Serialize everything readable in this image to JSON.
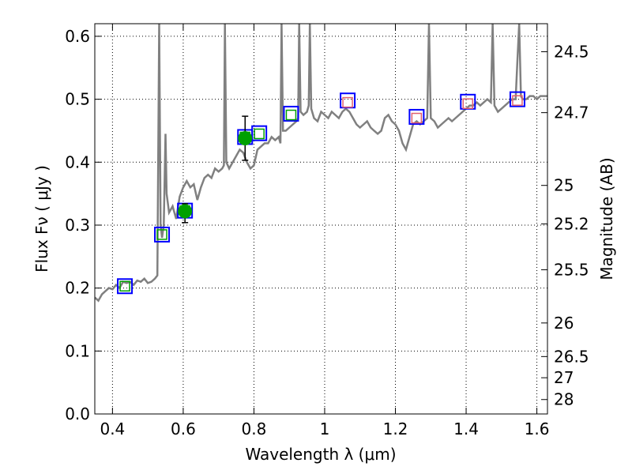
{
  "chart_data": {
    "type": "scatter",
    "xlabel": "Wavelength  λ (μm)",
    "ylabel": "Flux  Fν  ( μJy )",
    "right_ylabel": "Magnitude (AB)",
    "xlim": [
      0.35,
      1.63
    ],
    "ylim": [
      0.0,
      0.62
    ],
    "grid": true,
    "x_ticks": [
      0.4,
      0.6,
      0.8,
      1.0,
      1.2,
      1.4,
      1.6
    ],
    "x_tick_labels": [
      "0.4",
      "0.6",
      "0.8",
      "1",
      "1.2",
      "1.4",
      "1.6"
    ],
    "y_ticks": [
      0.0,
      0.1,
      0.2,
      0.3,
      0.4,
      0.5,
      0.6
    ],
    "y_tick_labels": [
      "0.0",
      "0.1",
      "0.2",
      "0.3",
      "0.4",
      "0.5",
      "0.6"
    ],
    "mag_ticks": [
      24.5,
      24.7,
      25,
      25.2,
      25.5,
      26,
      26.5,
      27,
      28
    ],
    "mag_tick_labels": [
      "24.5",
      "24.7",
      "25",
      "25.2",
      "25.5",
      "26",
      "26.5",
      "27",
      "28"
    ],
    "series": [
      {
        "kind": "line",
        "color": "#808080",
        "points": [
          [
            0.35,
            0.185
          ],
          [
            0.36,
            0.18
          ],
          [
            0.37,
            0.19
          ],
          [
            0.38,
            0.195
          ],
          [
            0.39,
            0.2
          ],
          [
            0.4,
            0.198
          ],
          [
            0.41,
            0.205
          ],
          [
            0.42,
            0.2
          ],
          [
            0.43,
            0.21
          ],
          [
            0.44,
            0.208
          ],
          [
            0.45,
            0.21
          ],
          [
            0.46,
            0.205
          ],
          [
            0.47,
            0.212
          ],
          [
            0.48,
            0.21
          ],
          [
            0.49,
            0.215
          ],
          [
            0.5,
            0.208
          ],
          [
            0.51,
            0.21
          ],
          [
            0.52,
            0.215
          ],
          [
            0.527,
            0.22
          ],
          [
            0.532,
            0.62
          ],
          [
            0.536,
            0.3
          ],
          [
            0.54,
            0.28
          ],
          [
            0.545,
            0.3
          ],
          [
            0.55,
            0.445
          ],
          [
            0.553,
            0.35
          ],
          [
            0.56,
            0.32
          ],
          [
            0.57,
            0.33
          ],
          [
            0.58,
            0.31
          ],
          [
            0.59,
            0.345
          ],
          [
            0.6,
            0.36
          ],
          [
            0.61,
            0.37
          ],
          [
            0.62,
            0.36
          ],
          [
            0.63,
            0.365
          ],
          [
            0.64,
            0.34
          ],
          [
            0.65,
            0.36
          ],
          [
            0.66,
            0.375
          ],
          [
            0.67,
            0.38
          ],
          [
            0.68,
            0.375
          ],
          [
            0.69,
            0.39
          ],
          [
            0.7,
            0.385
          ],
          [
            0.71,
            0.39
          ],
          [
            0.715,
            0.395
          ],
          [
            0.718,
            0.62
          ],
          [
            0.722,
            0.4
          ],
          [
            0.73,
            0.39
          ],
          [
            0.74,
            0.4
          ],
          [
            0.75,
            0.41
          ],
          [
            0.76,
            0.42
          ],
          [
            0.77,
            0.415
          ],
          [
            0.78,
            0.4
          ],
          [
            0.79,
            0.39
          ],
          [
            0.8,
            0.395
          ],
          [
            0.81,
            0.42
          ],
          [
            0.82,
            0.425
          ],
          [
            0.83,
            0.43
          ],
          [
            0.84,
            0.43
          ],
          [
            0.85,
            0.44
          ],
          [
            0.86,
            0.435
          ],
          [
            0.87,
            0.44
          ],
          [
            0.875,
            0.43
          ],
          [
            0.878,
            0.62
          ],
          [
            0.882,
            0.45
          ],
          [
            0.89,
            0.45
          ],
          [
            0.9,
            0.455
          ],
          [
            0.91,
            0.46
          ],
          [
            0.92,
            0.465
          ],
          [
            0.925,
            0.47
          ],
          [
            0.928,
            0.62
          ],
          [
            0.932,
            0.48
          ],
          [
            0.94,
            0.475
          ],
          [
            0.95,
            0.48
          ],
          [
            0.955,
            0.49
          ],
          [
            0.958,
            0.62
          ],
          [
            0.962,
            0.485
          ],
          [
            0.97,
            0.47
          ],
          [
            0.98,
            0.465
          ],
          [
            0.99,
            0.48
          ],
          [
            1.0,
            0.475
          ],
          [
            1.01,
            0.47
          ],
          [
            1.02,
            0.48
          ],
          [
            1.03,
            0.475
          ],
          [
            1.04,
            0.47
          ],
          [
            1.05,
            0.48
          ],
          [
            1.06,
            0.485
          ],
          [
            1.07,
            0.48
          ],
          [
            1.08,
            0.47
          ],
          [
            1.09,
            0.46
          ],
          [
            1.1,
            0.455
          ],
          [
            1.11,
            0.46
          ],
          [
            1.12,
            0.465
          ],
          [
            1.13,
            0.455
          ],
          [
            1.14,
            0.45
          ],
          [
            1.15,
            0.445
          ],
          [
            1.16,
            0.45
          ],
          [
            1.17,
            0.47
          ],
          [
            1.18,
            0.475
          ],
          [
            1.19,
            0.465
          ],
          [
            1.2,
            0.46
          ],
          [
            1.21,
            0.45
          ],
          [
            1.22,
            0.43
          ],
          [
            1.23,
            0.42
          ],
          [
            1.24,
            0.44
          ],
          [
            1.25,
            0.46
          ],
          [
            1.26,
            0.465
          ],
          [
            1.27,
            0.46
          ],
          [
            1.28,
            0.465
          ],
          [
            1.29,
            0.47
          ],
          [
            1.295,
            0.62
          ],
          [
            1.3,
            0.47
          ],
          [
            1.31,
            0.465
          ],
          [
            1.32,
            0.455
          ],
          [
            1.33,
            0.46
          ],
          [
            1.34,
            0.465
          ],
          [
            1.35,
            0.47
          ],
          [
            1.36,
            0.465
          ],
          [
            1.37,
            0.47
          ],
          [
            1.38,
            0.475
          ],
          [
            1.39,
            0.48
          ],
          [
            1.4,
            0.485
          ],
          [
            1.41,
            0.49
          ],
          [
            1.42,
            0.49
          ],
          [
            1.43,
            0.495
          ],
          [
            1.44,
            0.49
          ],
          [
            1.45,
            0.495
          ],
          [
            1.46,
            0.5
          ],
          [
            1.47,
            0.495
          ],
          [
            1.475,
            0.62
          ],
          [
            1.48,
            0.49
          ],
          [
            1.49,
            0.48
          ],
          [
            1.5,
            0.485
          ],
          [
            1.51,
            0.49
          ],
          [
            1.52,
            0.495
          ],
          [
            1.53,
            0.5
          ],
          [
            1.54,
            0.5
          ],
          [
            1.545,
            0.56
          ],
          [
            1.55,
            0.62
          ],
          [
            1.555,
            0.505
          ],
          [
            1.56,
            0.5
          ],
          [
            1.57,
            0.5
          ],
          [
            1.58,
            0.505
          ],
          [
            1.59,
            0.505
          ],
          [
            1.6,
            0.5
          ],
          [
            1.61,
            0.505
          ],
          [
            1.62,
            0.505
          ],
          [
            1.63,
            0.505
          ]
        ]
      },
      {
        "kind": "photometry",
        "color": "#0000ff",
        "points": [
          [
            0.435,
            0.203
          ],
          [
            0.54,
            0.285
          ],
          [
            0.605,
            0.323
          ],
          [
            0.775,
            0.44
          ],
          [
            0.815,
            0.446
          ],
          [
            0.905,
            0.477
          ],
          [
            1.065,
            0.498
          ],
          [
            1.26,
            0.472
          ],
          [
            1.405,
            0.496
          ],
          [
            1.545,
            0.5
          ]
        ]
      },
      {
        "kind": "model",
        "color": "#00a000",
        "points": [
          [
            0.435,
            0.203
          ],
          [
            0.54,
            0.285
          ],
          [
            0.605,
            0.323
          ],
          [
            0.775,
            0.44
          ],
          [
            0.815,
            0.445
          ],
          [
            0.905,
            0.475
          ]
        ]
      },
      {
        "kind": "model",
        "color": "#e06070",
        "points": [
          [
            1.065,
            0.495
          ],
          [
            1.26,
            0.47
          ],
          [
            1.405,
            0.493
          ],
          [
            1.545,
            0.498
          ]
        ]
      },
      {
        "kind": "detection",
        "color": "#00a000",
        "points": [
          [
            0.605,
            0.322
          ],
          [
            0.775,
            0.438
          ]
        ],
        "err": [
          [
            0.018,
            0.012
          ],
          [
            0.035,
            0.035
          ]
        ]
      }
    ]
  }
}
